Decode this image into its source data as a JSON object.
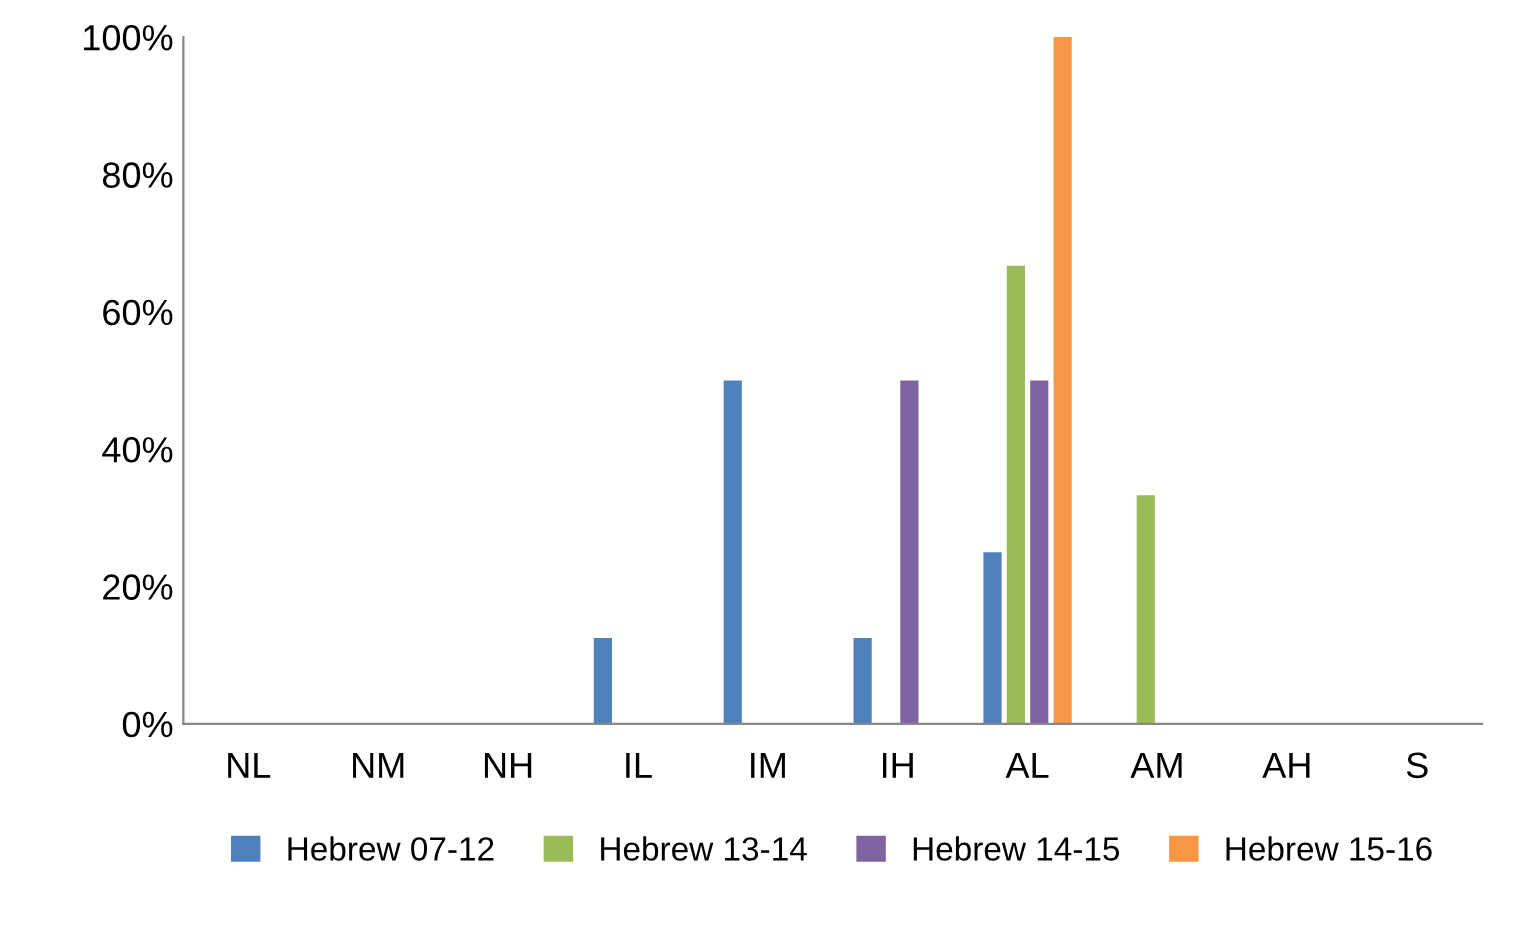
{
  "chart_data": {
    "type": "bar",
    "categories": [
      "NL",
      "NM",
      "NH",
      "IL",
      "IM",
      "IH",
      "AL",
      "AM",
      "AH",
      "S"
    ],
    "series": [
      {
        "name": "Hebrew 07-12",
        "color": "#4f81bd",
        "values": [
          0,
          0,
          0,
          12.5,
          50,
          12.5,
          25,
          0,
          0,
          0
        ]
      },
      {
        "name": "Hebrew 13-14",
        "color": "#9bbb59",
        "values": [
          0,
          0,
          0,
          0,
          0,
          0,
          66.7,
          33.3,
          0,
          0
        ]
      },
      {
        "name": "Hebrew 14-15",
        "color": "#8064a2",
        "values": [
          0,
          0,
          0,
          0,
          0,
          50,
          50,
          0,
          0,
          0
        ]
      },
      {
        "name": "Hebrew 15-16",
        "color": "#f79646",
        "values": [
          0,
          0,
          0,
          0,
          0,
          0,
          100,
          0,
          0,
          0
        ]
      }
    ],
    "ylim": [
      0,
      100
    ],
    "yticks": [
      {
        "value": 0,
        "label": "0%"
      },
      {
        "value": 20,
        "label": "20%"
      },
      {
        "value": 40,
        "label": "40%"
      },
      {
        "value": 60,
        "label": "60%"
      },
      {
        "value": 80,
        "label": "80%"
      },
      {
        "value": 100,
        "label": "100%"
      }
    ],
    "grid": false,
    "legend": "bottom"
  }
}
